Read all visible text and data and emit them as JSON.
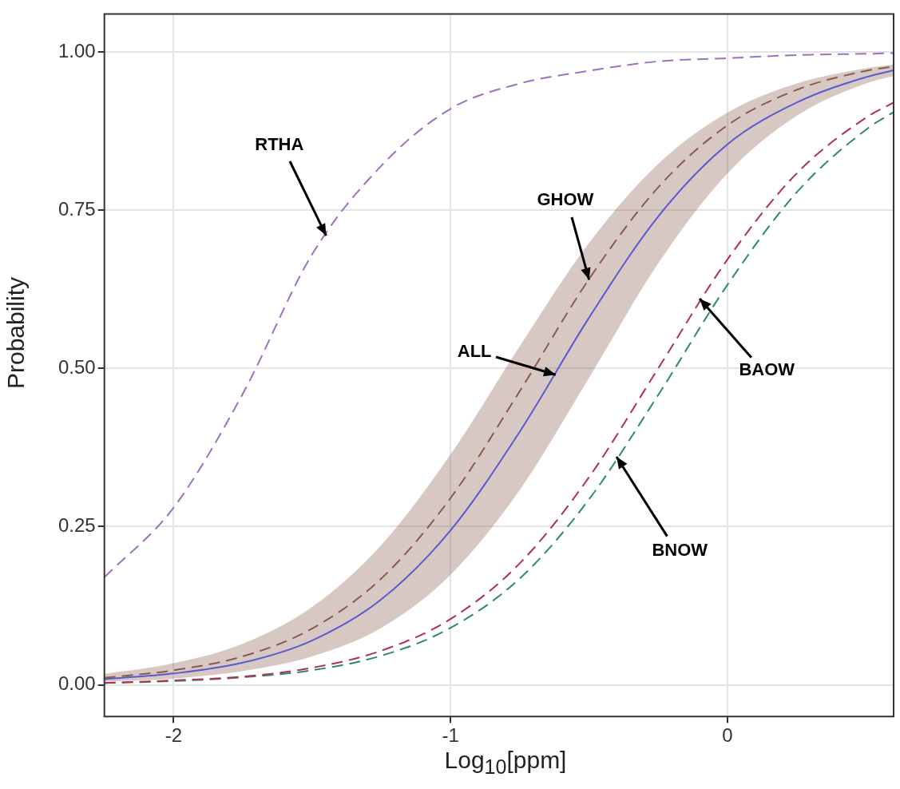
{
  "chart_data": {
    "type": "line",
    "xlabel": "Log$_{10}$[ppm]",
    "ylabel": "Probability",
    "x": [
      -2.25,
      -2,
      -1.75,
      -1.5,
      -1.25,
      -1,
      -0.75,
      -0.5,
      -0.25,
      0,
      0.25,
      0.5,
      0.6
    ],
    "xlim": [
      -2.25,
      0.6
    ],
    "xticks": [
      -2,
      -1,
      0
    ],
    "ylim": [
      -0.05,
      1.06
    ],
    "yticks": [
      {
        "value": 0,
        "label": "0.00"
      },
      {
        "value": 0.25,
        "label": "0.25"
      },
      {
        "value": 0.5,
        "label": "0.50"
      },
      {
        "value": 0.75,
        "label": "0.75"
      },
      {
        "value": 1,
        "label": "1.00"
      }
    ],
    "grid": true,
    "marker": "none",
    "series": [
      {
        "color": "#a070c0",
        "line_style": "dashed",
        "values": [
          0.17,
          0.28,
          0.46,
          0.68,
          0.82,
          0.91,
          0.95,
          0.97,
          0.985,
          0.99,
          0.995,
          0.997,
          0.998
        ]
      },
      {
        "color": "#8b5a4a",
        "line_style": "dashed",
        "values": [
          0.011,
          0.023,
          0.045,
          0.089,
          0.168,
          0.295,
          0.464,
          0.641,
          0.786,
          0.884,
          0.94,
          0.97,
          0.977
        ],
        "lower": [
          0.005,
          0.01,
          0.022,
          0.045,
          0.09,
          0.174,
          0.308,
          0.485,
          0.666,
          0.808,
          0.899,
          0.95,
          0.962
        ],
        "upper": [
          0.017,
          0.034,
          0.065,
          0.123,
          0.221,
          0.364,
          0.535,
          0.698,
          0.823,
          0.904,
          0.95,
          0.974,
          0.98
        ]
      },
      {
        "color": "#5a5ad0",
        "line_style": "solid",
        "values": [
          0.009,
          0.018,
          0.035,
          0.07,
          0.135,
          0.244,
          0.4,
          0.58,
          0.74,
          0.854,
          0.92,
          0.96,
          0.971
        ]
      },
      {
        "color": "#b03050",
        "line_style": "dashed",
        "values": [
          0.003,
          0.007,
          0.013,
          0.027,
          0.054,
          0.104,
          0.192,
          0.328,
          0.5,
          0.672,
          0.808,
          0.896,
          0.92
        ]
      },
      {
        "color": "#2a8a6a",
        "line_style": "dashed",
        "values": [
          0.003,
          0.006,
          0.012,
          0.023,
          0.046,
          0.09,
          0.168,
          0.293,
          0.458,
          0.632,
          0.778,
          0.877,
          0.905
        ]
      }
    ],
    "annotations": [
      {
        "text": "RTHA",
        "x": -1.45,
        "y": 0.71
      },
      {
        "text": "GHOW",
        "x": -0.5,
        "y": 0.64
      },
      {
        "text": "ALL",
        "x": -0.62,
        "y": 0.49
      },
      {
        "text": "BAOW",
        "x": -0.1,
        "y": 0.61
      },
      {
        "text": "BNOW",
        "x": -0.4,
        "y": 0.36
      }
    ]
  }
}
